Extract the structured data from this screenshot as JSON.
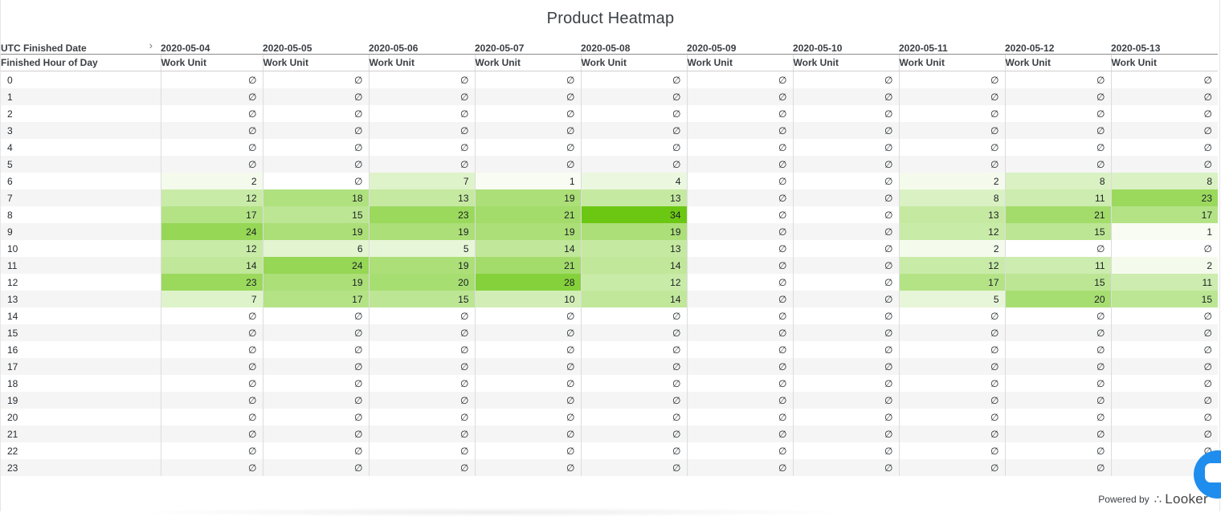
{
  "title": "Product Heatmap",
  "dimension_header": "UTC Finished Date",
  "row_header": "Finished Hour of Day",
  "measure_label": "Work Unit",
  "null_symbol": "∅",
  "footer": {
    "powered_by": "Powered by",
    "brand": "Looker"
  },
  "icons": {
    "expand": "chevron-right-icon",
    "brand_logo": "looker-logo-icon",
    "chat": "chat-bubble-icon"
  },
  "colors": {
    "heat_max": "#6cc712",
    "heat_min": "#f4fbef",
    "null_text": "#9aa0a6",
    "chat": "#1f8ded"
  },
  "chart_data": {
    "type": "table",
    "dates": [
      "2020-05-04",
      "2020-05-05",
      "2020-05-06",
      "2020-05-07",
      "2020-05-08",
      "2020-05-09",
      "2020-05-10",
      "2020-05-11",
      "2020-05-12",
      "2020-05-13"
    ],
    "hours": [
      "0",
      "1",
      "2",
      "3",
      "4",
      "5",
      "6",
      "7",
      "8",
      "9",
      "10",
      "11",
      "12",
      "13",
      "14",
      "15",
      "16",
      "17",
      "18",
      "19",
      "20",
      "21",
      "22",
      "23"
    ],
    "values": [
      [
        null,
        null,
        null,
        null,
        null,
        null,
        null,
        null,
        null,
        null
      ],
      [
        null,
        null,
        null,
        null,
        null,
        null,
        null,
        null,
        null,
        null
      ],
      [
        null,
        null,
        null,
        null,
        null,
        null,
        null,
        null,
        null,
        null
      ],
      [
        null,
        null,
        null,
        null,
        null,
        null,
        null,
        null,
        null,
        null
      ],
      [
        null,
        null,
        null,
        null,
        null,
        null,
        null,
        null,
        null,
        null
      ],
      [
        null,
        null,
        null,
        null,
        null,
        null,
        null,
        null,
        null,
        null
      ],
      [
        2,
        null,
        7,
        1,
        4,
        null,
        null,
        2,
        8,
        8
      ],
      [
        12,
        18,
        13,
        19,
        13,
        null,
        null,
        8,
        11,
        23
      ],
      [
        17,
        15,
        23,
        21,
        34,
        null,
        null,
        13,
        21,
        17
      ],
      [
        24,
        19,
        19,
        19,
        19,
        null,
        null,
        12,
        15,
        1
      ],
      [
        12,
        6,
        5,
        14,
        13,
        null,
        null,
        2,
        null,
        null
      ],
      [
        14,
        24,
        19,
        21,
        14,
        null,
        null,
        12,
        11,
        2
      ],
      [
        23,
        19,
        20,
        28,
        12,
        null,
        null,
        17,
        15,
        11
      ],
      [
        7,
        17,
        15,
        10,
        14,
        null,
        null,
        5,
        20,
        15
      ],
      [
        null,
        null,
        null,
        null,
        null,
        null,
        null,
        null,
        null,
        null
      ],
      [
        null,
        null,
        null,
        null,
        null,
        null,
        null,
        null,
        null,
        null
      ],
      [
        null,
        null,
        null,
        null,
        null,
        null,
        null,
        null,
        null,
        null
      ],
      [
        null,
        null,
        null,
        null,
        null,
        null,
        null,
        null,
        null,
        null
      ],
      [
        null,
        null,
        null,
        null,
        null,
        null,
        null,
        null,
        null,
        null
      ],
      [
        null,
        null,
        null,
        null,
        null,
        null,
        null,
        null,
        null,
        null
      ],
      [
        null,
        null,
        null,
        null,
        null,
        null,
        null,
        null,
        null,
        null
      ],
      [
        null,
        null,
        null,
        null,
        null,
        null,
        null,
        null,
        null,
        null
      ],
      [
        null,
        null,
        null,
        null,
        null,
        null,
        null,
        null,
        null,
        null
      ],
      [
        null,
        null,
        null,
        null,
        null,
        null,
        null,
        null,
        null,
        null
      ]
    ]
  }
}
